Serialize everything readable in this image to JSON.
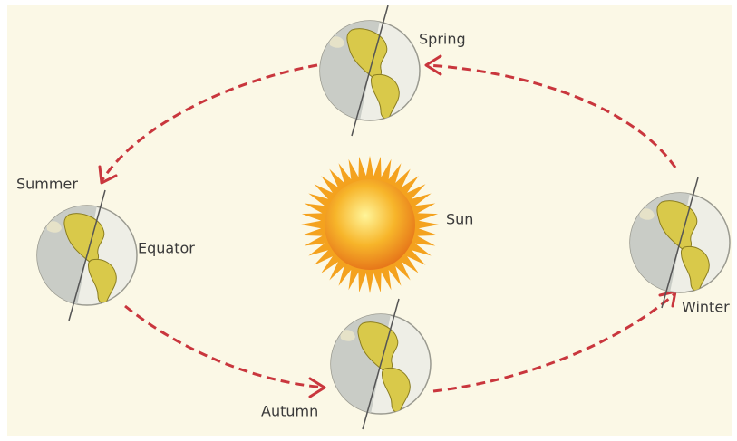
{
  "labels": {
    "spring": "Spring",
    "summer": "Summer",
    "equator": "Equator",
    "sun": "Sun",
    "winter": "Winter",
    "autumn": "Autumn"
  }
}
